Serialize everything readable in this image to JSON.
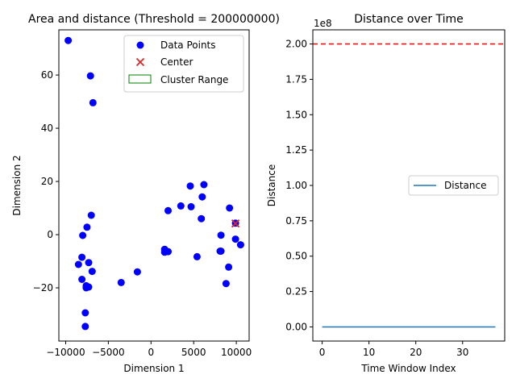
{
  "chart_data": [
    {
      "type": "scatter",
      "title": "Area and distance (Threshold = 200000000)",
      "xlabel": "Dimension 1",
      "ylabel": "Dimension 2",
      "xlim": [
        -10800,
        11500
      ],
      "ylim": [
        -40,
        77
      ],
      "xticks": [
        -10000,
        -5000,
        0,
        5000,
        10000
      ],
      "yticks": [
        -20,
        0,
        20,
        40,
        60
      ],
      "grid": false,
      "legend_position": "top-right",
      "legend": [
        {
          "label": "Data Points",
          "marker": "circle",
          "color": "#0000ff"
        },
        {
          "label": "Center",
          "marker": "x",
          "color": "#d62728"
        },
        {
          "label": "Cluster Range",
          "marker": "rect",
          "color": "#008000"
        }
      ],
      "series": [
        {
          "name": "Data Points",
          "color": "#0000ff",
          "points": [
            [
              -9700,
              73
            ],
            [
              -7100,
              59.7
            ],
            [
              -6800,
              49.6
            ],
            [
              -7000,
              7.3
            ],
            [
              -7500,
              2.8
            ],
            [
              -8000,
              -0.3
            ],
            [
              -8100,
              -8.5
            ],
            [
              -8500,
              -11.2
            ],
            [
              -7300,
              -10.5
            ],
            [
              -6900,
              -13.8
            ],
            [
              -8100,
              -16.8
            ],
            [
              -7600,
              -19.2
            ],
            [
              -7300,
              -19.7
            ],
            [
              -7600,
              -20
            ],
            [
              -7700,
              -29.4
            ],
            [
              -7700,
              -34.5
            ],
            [
              -3500,
              -18
            ],
            [
              -1600,
              -14
            ],
            [
              1600,
              -5.5
            ],
            [
              1600,
              -6.6
            ],
            [
              2000,
              -6.4
            ],
            [
              2000,
              9
            ],
            [
              3500,
              10.8
            ],
            [
              4600,
              18.3
            ],
            [
              4700,
              10.5
            ],
            [
              6200,
              18.8
            ],
            [
              6000,
              14.2
            ],
            [
              5900,
              6
            ],
            [
              5400,
              -8.3
            ],
            [
              8100,
              -6.2
            ],
            [
              8200,
              -6.2
            ],
            [
              8200,
              -0.2
            ],
            [
              9200,
              10
            ],
            [
              9900,
              4.3
            ],
            [
              9900,
              -1.7
            ],
            [
              10500,
              -3.8
            ],
            [
              9100,
              -12.2
            ],
            [
              8800,
              -18.4
            ]
          ]
        },
        {
          "name": "Center",
          "color": "#d62728",
          "points": [
            [
              9900,
              4.2
            ]
          ]
        }
      ]
    },
    {
      "type": "line",
      "title": "Distance over Time",
      "xlabel": "Time Window Index",
      "ylabel": "Distance",
      "offset_text": "1e8",
      "xlim": [
        -2,
        39
      ],
      "ylim": [
        -10000000,
        210000000
      ],
      "xticks": [
        0,
        10,
        20,
        30
      ],
      "yticks": [
        0,
        25000000,
        50000000,
        75000000,
        100000000,
        125000000,
        150000000,
        175000000,
        200000000
      ],
      "ytick_labels": [
        "0.00",
        "0.25",
        "0.50",
        "0.75",
        "1.00",
        "1.25",
        "1.50",
        "1.75",
        "2.00"
      ],
      "grid": false,
      "legend_position": "center-right",
      "legend": [
        {
          "label": "Distance",
          "color": "#1f77b4"
        }
      ],
      "threshold": {
        "value": 200000000,
        "color": "#ff0000",
        "style": "dashed"
      },
      "series": [
        {
          "name": "Distance",
          "color": "#1f77b4",
          "x": [
            0,
            37
          ],
          "y": [
            0,
            0
          ]
        }
      ]
    }
  ]
}
